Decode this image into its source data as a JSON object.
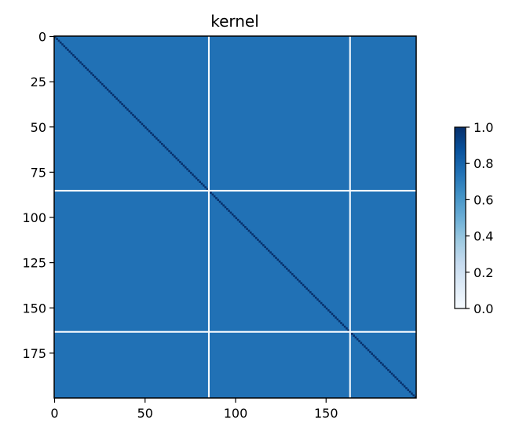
{
  "chart_data": {
    "type": "heatmap",
    "title": "kernel",
    "xlabel": "",
    "ylabel": "",
    "matrix_size": 200,
    "xlim": [
      0,
      200
    ],
    "ylim": [
      200,
      0
    ],
    "x_ticks": [
      0,
      50,
      100,
      150
    ],
    "y_ticks": [
      0,
      25,
      50,
      75,
      100,
      125,
      150,
      175
    ],
    "colormap": "Blues",
    "colormap_stops": [
      "#f7fbff",
      "#deebf7",
      "#c6dbef",
      "#9ecae1",
      "#6baed6",
      "#4292c6",
      "#2171b5",
      "#08519c",
      "#08306b"
    ],
    "background_value": 0.75,
    "diagonal_value": 1.0,
    "separator_value": 0.0,
    "separator_indices": [
      85,
      163
    ],
    "colorbar": {
      "range": [
        0.0,
        1.0
      ],
      "ticks": [
        "0.0",
        "0.2",
        "0.4",
        "0.6",
        "0.8",
        "1.0"
      ],
      "placement": "right"
    },
    "grid": false
  }
}
